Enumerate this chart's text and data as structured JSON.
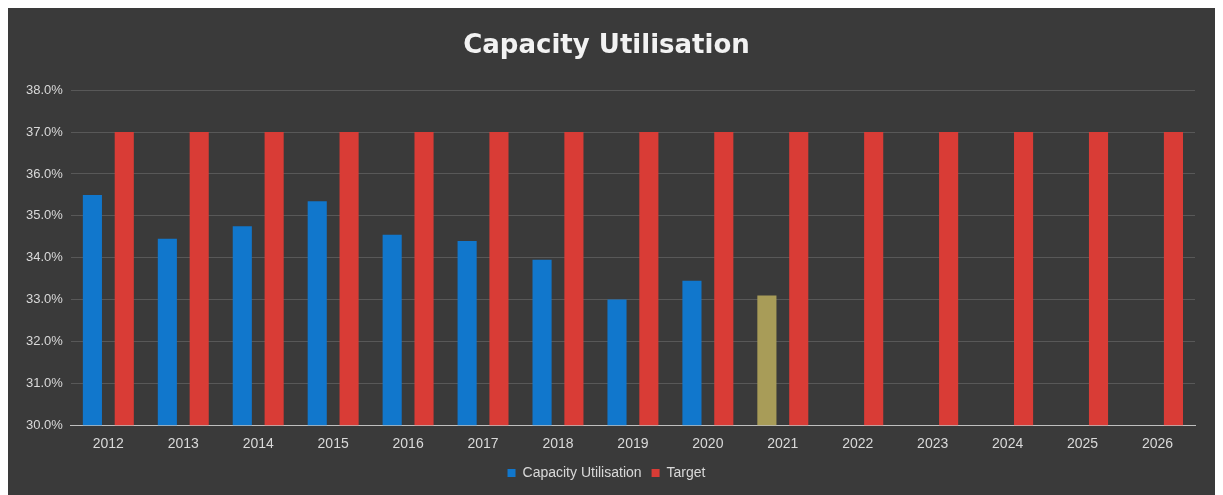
{
  "chart_data": {
    "type": "bar",
    "title": "Capacity Utilisation",
    "categories": [
      "2012",
      "2013",
      "2014",
      "2015",
      "2016",
      "2017",
      "2018",
      "2019",
      "2020",
      "2021",
      "2022",
      "2023",
      "2024",
      "2025",
      "2026"
    ],
    "series": [
      {
        "name": "Capacity Utilisation",
        "color": "#1177cc",
        "colors": [
          "#1177cc",
          "#1177cc",
          "#1177cc",
          "#1177cc",
          "#1177cc",
          "#1177cc",
          "#1177cc",
          "#1177cc",
          "#1177cc",
          "#a89c58",
          null,
          null,
          null,
          null,
          null
        ],
        "values": [
          35.5,
          34.45,
          34.75,
          35.35,
          34.55,
          34.4,
          33.95,
          33.0,
          33.45,
          33.1,
          null,
          null,
          null,
          null,
          null
        ]
      },
      {
        "name": "Target",
        "color": "#d93c36",
        "values": [
          37,
          37,
          37,
          37,
          37,
          37,
          37,
          37,
          37,
          37,
          37,
          37,
          37,
          37,
          37
        ]
      }
    ],
    "ylim": [
      30,
      38
    ],
    "yticks": [
      {
        "value": 30,
        "label": "30.0%"
      },
      {
        "value": 31,
        "label": "31.0%"
      },
      {
        "value": 32,
        "label": "32.0%"
      },
      {
        "value": 33,
        "label": "33.0%"
      },
      {
        "value": 34,
        "label": "34.0%"
      },
      {
        "value": 35,
        "label": "35.0%"
      },
      {
        "value": 36,
        "label": "36.0%"
      },
      {
        "value": 37,
        "label": "37.0%"
      },
      {
        "value": 38,
        "label": "38.0%"
      }
    ],
    "grid": "y",
    "legend": "bottom"
  }
}
